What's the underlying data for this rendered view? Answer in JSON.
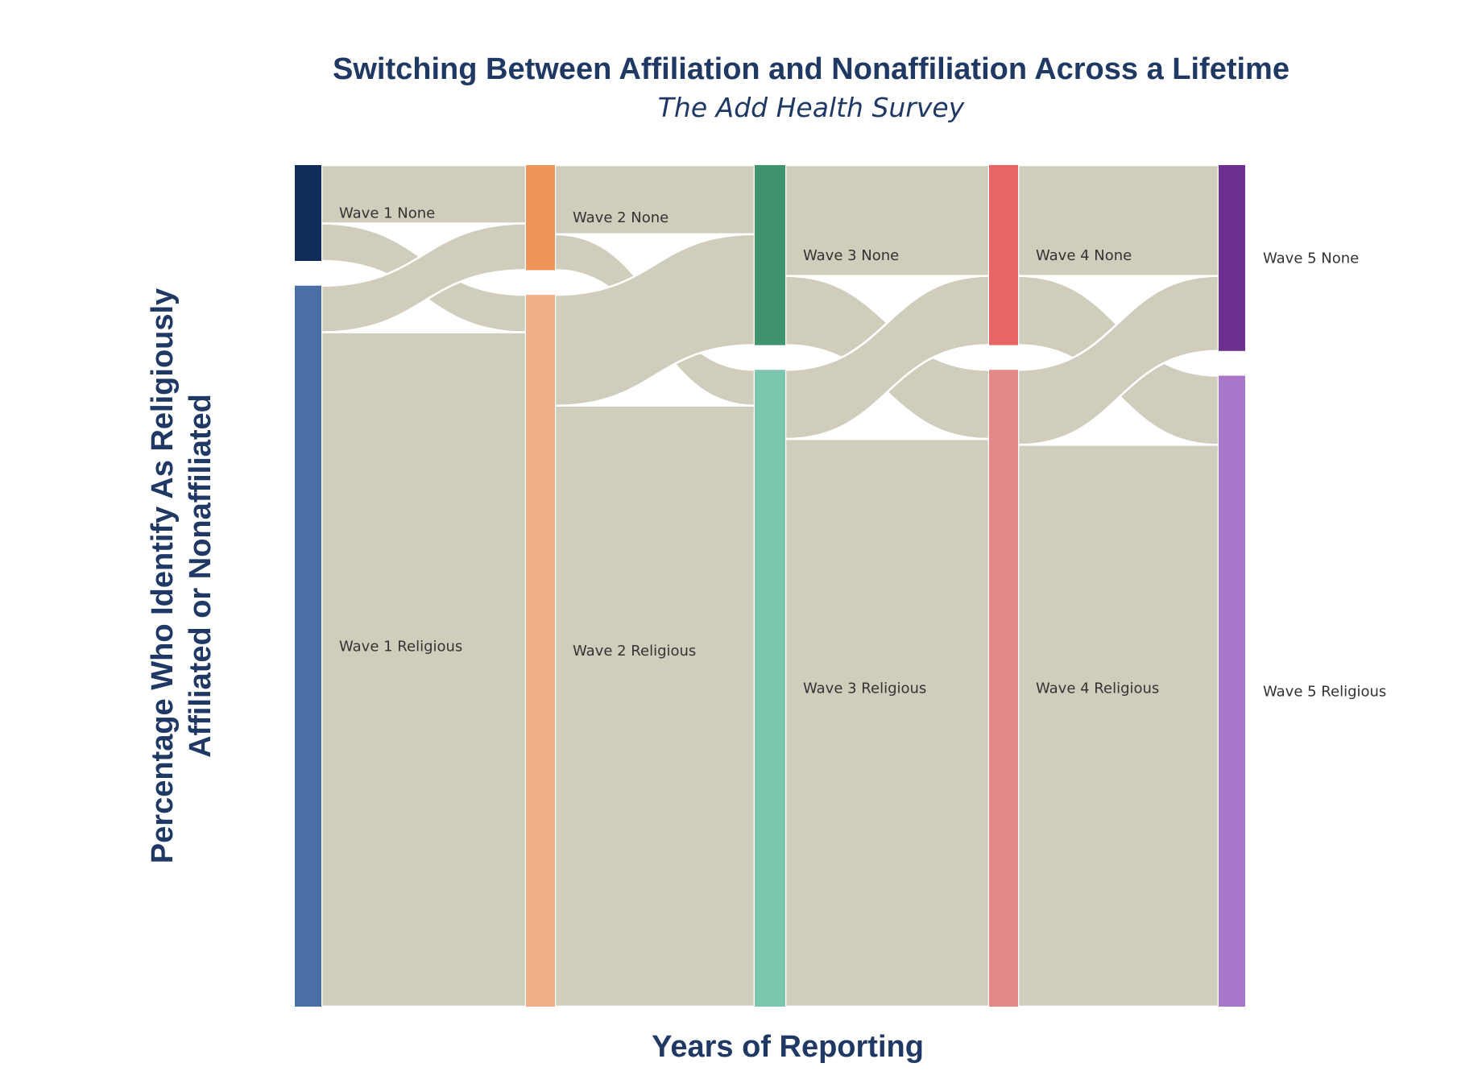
{
  "chart_data": {
    "type": "sankey",
    "title": "Switching Between Affiliation and Nonaffiliation Across a Lifetime",
    "subtitle": "The Add Health Survey",
    "xlabel": "Years of Reporting",
    "ylabel_lines": [
      "Percentage Who Identify As Religiously",
      "Affiliated or Nonaffiliated"
    ],
    "flow_color": "#d1cdbd",
    "nodes": [
      {
        "id": "w1n",
        "label": "Wave 1 None",
        "stage": 1,
        "value": 11.5,
        "color": "#122c5a"
      },
      {
        "id": "w1r",
        "label": "Wave 1 Religious",
        "stage": 1,
        "value": 86.5,
        "color": "#4a6fa5"
      },
      {
        "id": "w2n",
        "label": "Wave 2 None",
        "stage": 2,
        "value": 12.6,
        "color": "#f0955a"
      },
      {
        "id": "w2r",
        "label": "Wave 2 Religious",
        "stage": 2,
        "value": 85.4,
        "color": "#f0b087"
      },
      {
        "id": "w3n",
        "label": "Wave 3 None",
        "stage": 3,
        "value": 21.6,
        "color": "#3f936e"
      },
      {
        "id": "w3r",
        "label": "Wave 3 Religious",
        "stage": 3,
        "value": 76.4,
        "color": "#7bc6ad"
      },
      {
        "id": "w4n",
        "label": "Wave 4 None",
        "stage": 4,
        "value": 21.6,
        "color": "#e96563"
      },
      {
        "id": "w4r",
        "label": "Wave 4 Religious",
        "stage": 4,
        "value": 76.4,
        "color": "#e58988"
      },
      {
        "id": "w5n",
        "label": "Wave 5 None",
        "stage": 5,
        "value": 22.3,
        "color": "#6d2f91"
      },
      {
        "id": "w5r",
        "label": "Wave 5 Religious",
        "stage": 5,
        "value": 75.7,
        "color": "#a877ca"
      }
    ],
    "links": [
      {
        "source": "w1n",
        "target": "w2n",
        "value": 7.0
      },
      {
        "source": "w1n",
        "target": "w2r",
        "value": 4.5
      },
      {
        "source": "w1r",
        "target": "w2n",
        "value": 5.6
      },
      {
        "source": "w1r",
        "target": "w2r",
        "value": 80.9
      },
      {
        "source": "w2n",
        "target": "w3n",
        "value": 8.3
      },
      {
        "source": "w2n",
        "target": "w3r",
        "value": 4.3
      },
      {
        "source": "w2r",
        "target": "w3n",
        "value": 13.3
      },
      {
        "source": "w2r",
        "target": "w3r",
        "value": 72.1
      },
      {
        "source": "w3n",
        "target": "w4n",
        "value": 13.3
      },
      {
        "source": "w3n",
        "target": "w4r",
        "value": 8.3
      },
      {
        "source": "w3r",
        "target": "w4n",
        "value": 8.3
      },
      {
        "source": "w3r",
        "target": "w4r",
        "value": 68.1
      },
      {
        "source": "w4n",
        "target": "w5n",
        "value": 13.3
      },
      {
        "source": "w4n",
        "target": "w5r",
        "value": 8.3
      },
      {
        "source": "w4r",
        "target": "w5n",
        "value": 9.0
      },
      {
        "source": "w4r",
        "target": "w5r",
        "value": 67.4
      }
    ]
  }
}
